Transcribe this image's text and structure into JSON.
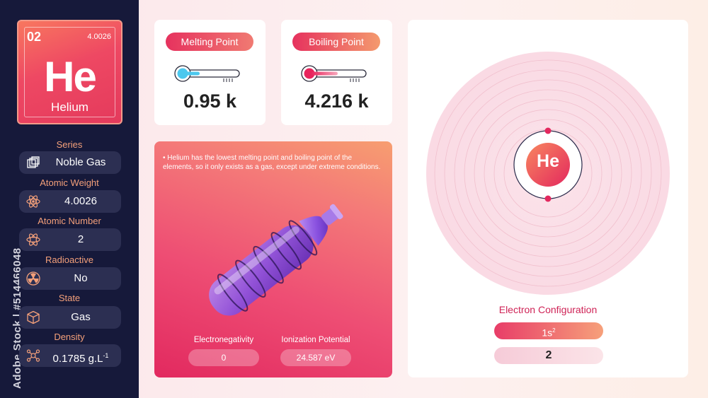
{
  "stock_watermark": "Adobe Stock | #514466048",
  "element": {
    "number": "02",
    "atomic_weight_small": "4.0026",
    "symbol": "He",
    "name": "Helium"
  },
  "properties": [
    {
      "label": "Series",
      "value": "Noble Gas",
      "icon": "squares-icon"
    },
    {
      "label": "Atomic Weight",
      "value": "4.0026",
      "icon": "atom-icon"
    },
    {
      "label": "Atomic Number",
      "value": "2",
      "icon": "atom-number-icon"
    },
    {
      "label": "Radioactive",
      "value": "No",
      "icon": "radioactive-icon"
    },
    {
      "label": "State",
      "value": "Gas",
      "icon": "cube-icon"
    },
    {
      "label": "Density",
      "value": "0.1785 g.L",
      "value_sup": "-1",
      "icon": "molecule-icon"
    }
  ],
  "melting": {
    "label": "Melting Point",
    "value": "0.95 k",
    "color": "#4cc8ee"
  },
  "boiling": {
    "label": "Boiling Point",
    "value": "4.216 k",
    "color": "#e8245c"
  },
  "description": "Helium has the lowest melting point and boiling point of the elements, so it only exists as a gas, except under extreme conditions.",
  "bullet": "•",
  "electronegativity": {
    "label": "Electronegativity",
    "value": "0"
  },
  "ionization": {
    "label": "Ionization Potential",
    "value": "24.587 eV"
  },
  "atom_symbol": "He",
  "electron_configuration": {
    "title": "Electron Configuration",
    "orbital": "1s",
    "orbital_sup": "2",
    "shells": "2"
  },
  "colors": {
    "sidebar": "#16193a",
    "accent_orange": "#f4a07a",
    "accent_pink": "#e8245c"
  }
}
